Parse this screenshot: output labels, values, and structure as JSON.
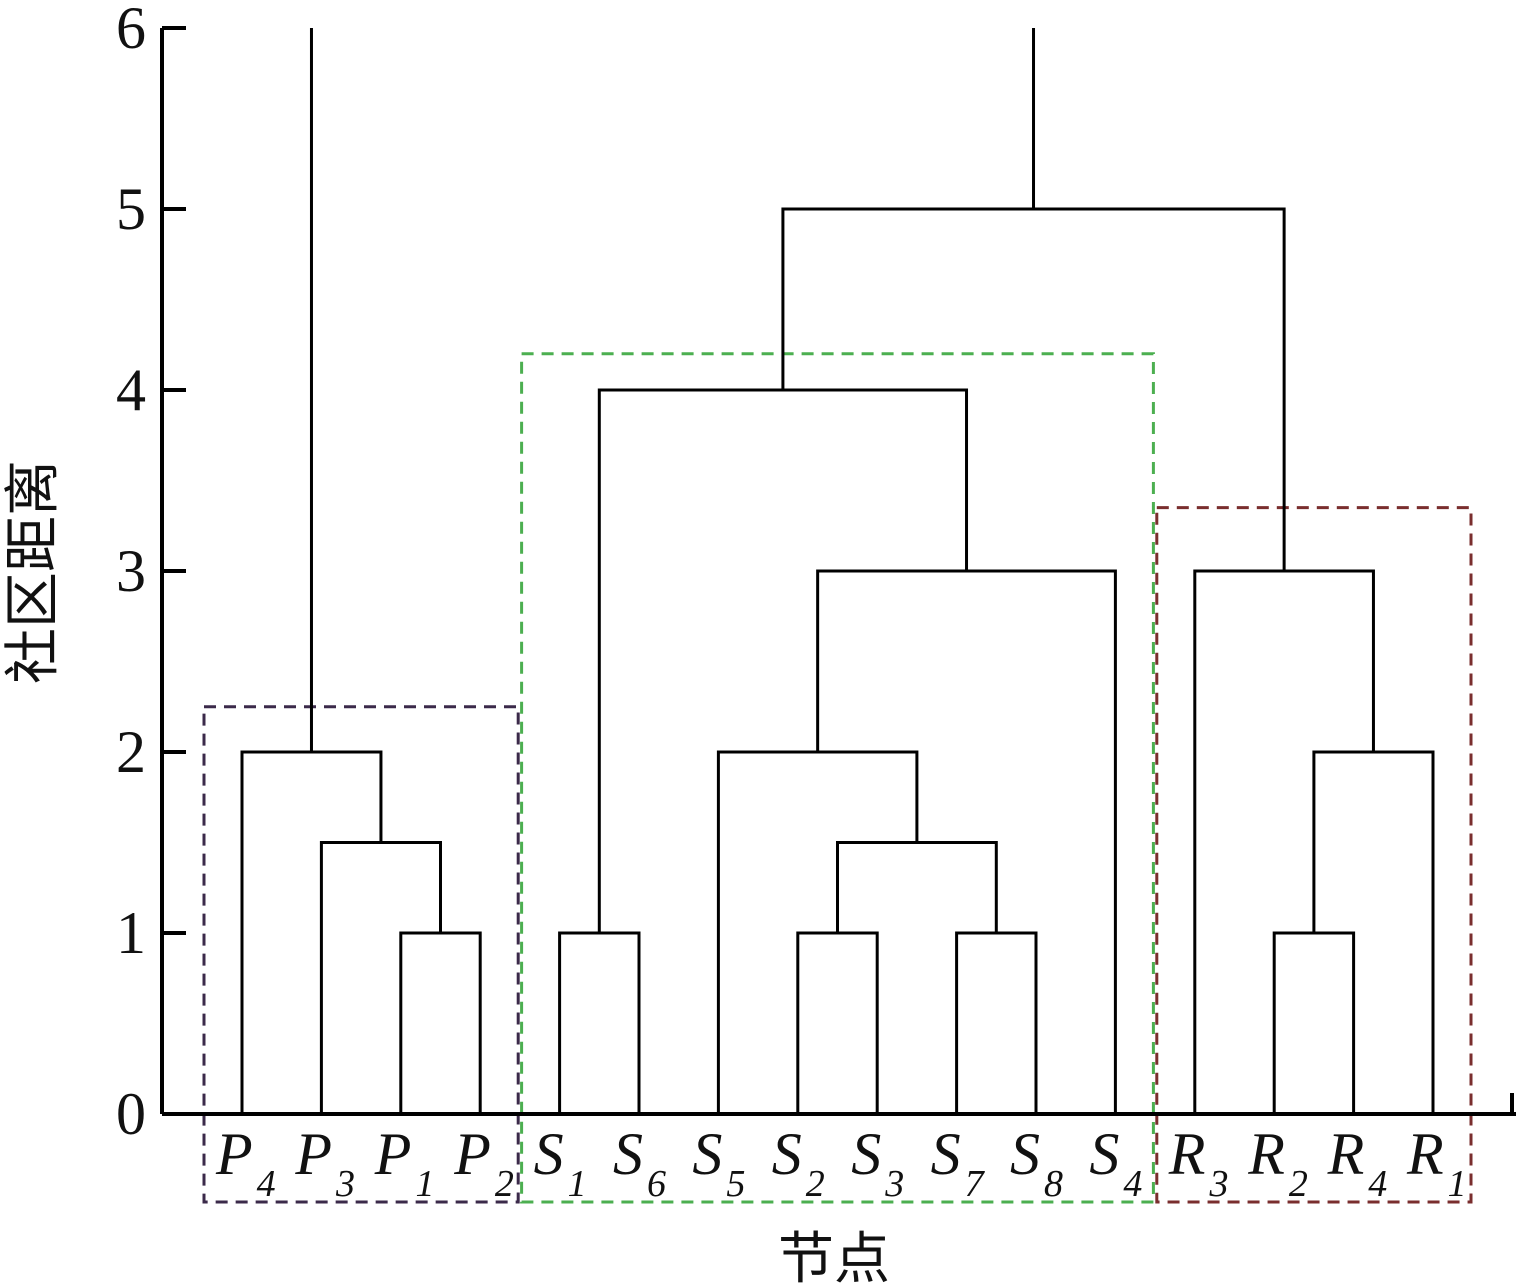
{
  "chart_data": {
    "type": "dendrogram",
    "ylabel": "社区距离",
    "xlabel": "节点",
    "ylim": [
      0,
      6
    ],
    "yticks": [
      0,
      1,
      2,
      3,
      4,
      5,
      6
    ],
    "leaves": [
      {
        "id": "P4",
        "main": "P",
        "sub": "4"
      },
      {
        "id": "P3",
        "main": "P",
        "sub": "3"
      },
      {
        "id": "P1",
        "main": "P",
        "sub": "1"
      },
      {
        "id": "P2",
        "main": "P",
        "sub": "2"
      },
      {
        "id": "S1",
        "main": "S",
        "sub": "1"
      },
      {
        "id": "S6",
        "main": "S",
        "sub": "6"
      },
      {
        "id": "S5",
        "main": "S",
        "sub": "5"
      },
      {
        "id": "S2",
        "main": "S",
        "sub": "2"
      },
      {
        "id": "S3",
        "main": "S",
        "sub": "3"
      },
      {
        "id": "S7",
        "main": "S",
        "sub": "7"
      },
      {
        "id": "S8",
        "main": "S",
        "sub": "8"
      },
      {
        "id": "S4",
        "main": "S",
        "sub": "4"
      },
      {
        "id": "R3",
        "main": "R",
        "sub": "3"
      },
      {
        "id": "R2",
        "main": "R",
        "sub": "2"
      },
      {
        "id": "R4",
        "main": "R",
        "sub": "4"
      },
      {
        "id": "R1",
        "main": "R",
        "sub": "1"
      }
    ],
    "merges": [
      {
        "id": "m1",
        "left": "P1",
        "right": "P2",
        "height": 1
      },
      {
        "id": "m2",
        "left": "P3",
        "right": "m1",
        "height": 1.5
      },
      {
        "id": "m3",
        "left": "P4",
        "right": "m2",
        "height": 2
      },
      {
        "id": "m4",
        "left": "S1",
        "right": "S6",
        "height": 1
      },
      {
        "id": "m5",
        "left": "S2",
        "right": "S3",
        "height": 1
      },
      {
        "id": "m6",
        "left": "S7",
        "right": "S8",
        "height": 1
      },
      {
        "id": "m7",
        "left": "m5",
        "right": "m6",
        "height": 1.5
      },
      {
        "id": "m8",
        "left": "S5",
        "right": "m7",
        "height": 2
      },
      {
        "id": "m9",
        "left": "m8",
        "right": "S4",
        "height": 3
      },
      {
        "id": "m10",
        "left": "m4",
        "right": "m9",
        "height": 4
      },
      {
        "id": "m11",
        "left": "R2",
        "right": "R4",
        "height": 1
      },
      {
        "id": "m12",
        "left": "m11",
        "right": "R1",
        "height": 2
      },
      {
        "id": "m13",
        "left": "R3",
        "right": "m12",
        "height": 3
      },
      {
        "id": "m14",
        "left": "m10",
        "right": "m13",
        "height": 5
      }
    ],
    "root_stems": [
      {
        "node": "m3",
        "top": 6
      },
      {
        "node": "m14",
        "top": 6
      }
    ],
    "groups": [
      {
        "leaves": [
          "P4",
          "P3",
          "P1",
          "P2"
        ],
        "height": 2.25,
        "color": "#3b2a4a"
      },
      {
        "leaves": [
          "S1",
          "S6",
          "S5",
          "S2",
          "S3",
          "S7",
          "S8",
          "S4"
        ],
        "height": 4.2,
        "color": "#4caf50"
      },
      {
        "leaves": [
          "R3",
          "R2",
          "R4",
          "R1"
        ],
        "height": 3.35,
        "color": "#7a2e2e"
      }
    ]
  }
}
